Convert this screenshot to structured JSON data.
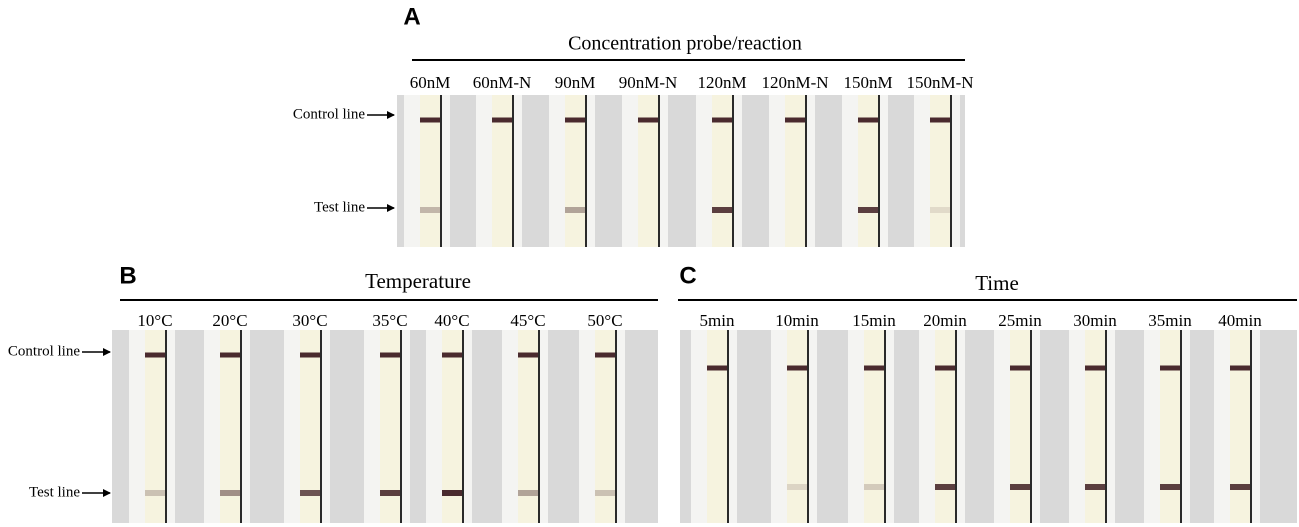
{
  "panels": [
    {
      "letter": "A",
      "title": "Concentration probe/reaction",
      "lanes": [
        "60nM",
        "60nM-N",
        "90nM",
        "90nM-N",
        "120nM",
        "120nM-N",
        "150nM",
        "150nM-N"
      ],
      "control_label": "Control line",
      "test_label": "Test line"
    },
    {
      "letter": "B",
      "title": "Temperature",
      "lanes": [
        "10°C",
        "20°C",
        "30°C",
        "35°C",
        "40°C",
        "45°C",
        "50°C"
      ],
      "control_label": "Control line",
      "test_label": "Test line"
    },
    {
      "letter": "C",
      "title": "Time",
      "lanes": [
        "5min",
        "10min",
        "15min",
        "20min",
        "25min",
        "30min",
        "35min",
        "40min"
      ]
    }
  ]
}
